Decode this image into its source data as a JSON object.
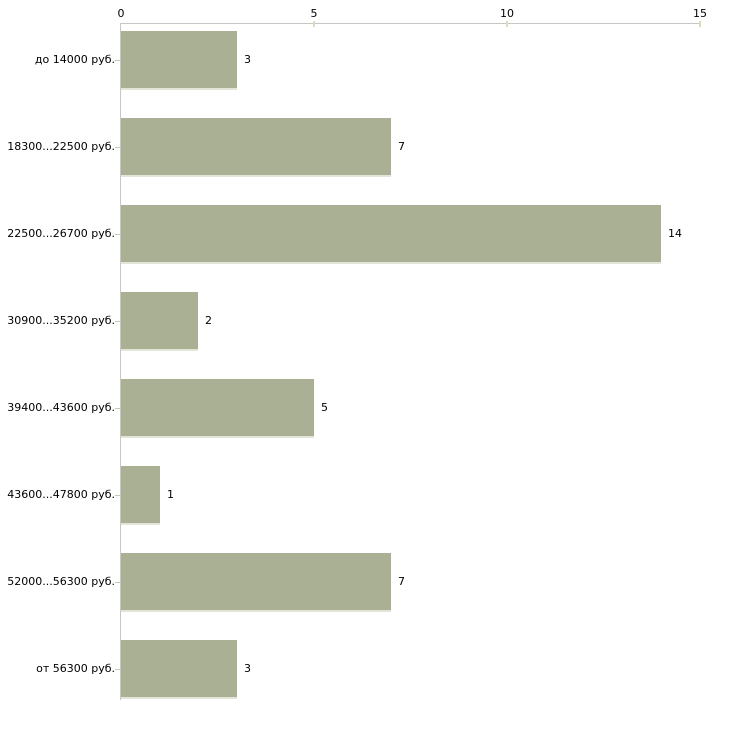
{
  "chart_data": {
    "type": "bar",
    "orientation": "horizontal",
    "title": "",
    "xlabel": "",
    "ylabel": "",
    "categories": [
      "до 14000 руб.",
      "18300...22500 руб.",
      "22500...26700 руб.",
      "30900...35200 руб.",
      "39400...43600 руб.",
      "43600...47800 руб.",
      "52000...56300 руб.",
      "от 56300 руб."
    ],
    "values": [
      3,
      7,
      14,
      2,
      5,
      1,
      7,
      3
    ],
    "xlim": [
      0,
      15
    ],
    "x_ticks": [
      0,
      5,
      10,
      15
    ],
    "axis_position": "top",
    "grid": false,
    "legend": null,
    "colors": {
      "background": "#ffffff",
      "bar_fill": "#aab093",
      "bar_edge_bottom": "#e2e5d7",
      "axis_line": "#c7c7c7",
      "tick_mark": "#dadcbd",
      "category_tick": "#c6c9b4",
      "text": "#000000"
    }
  }
}
